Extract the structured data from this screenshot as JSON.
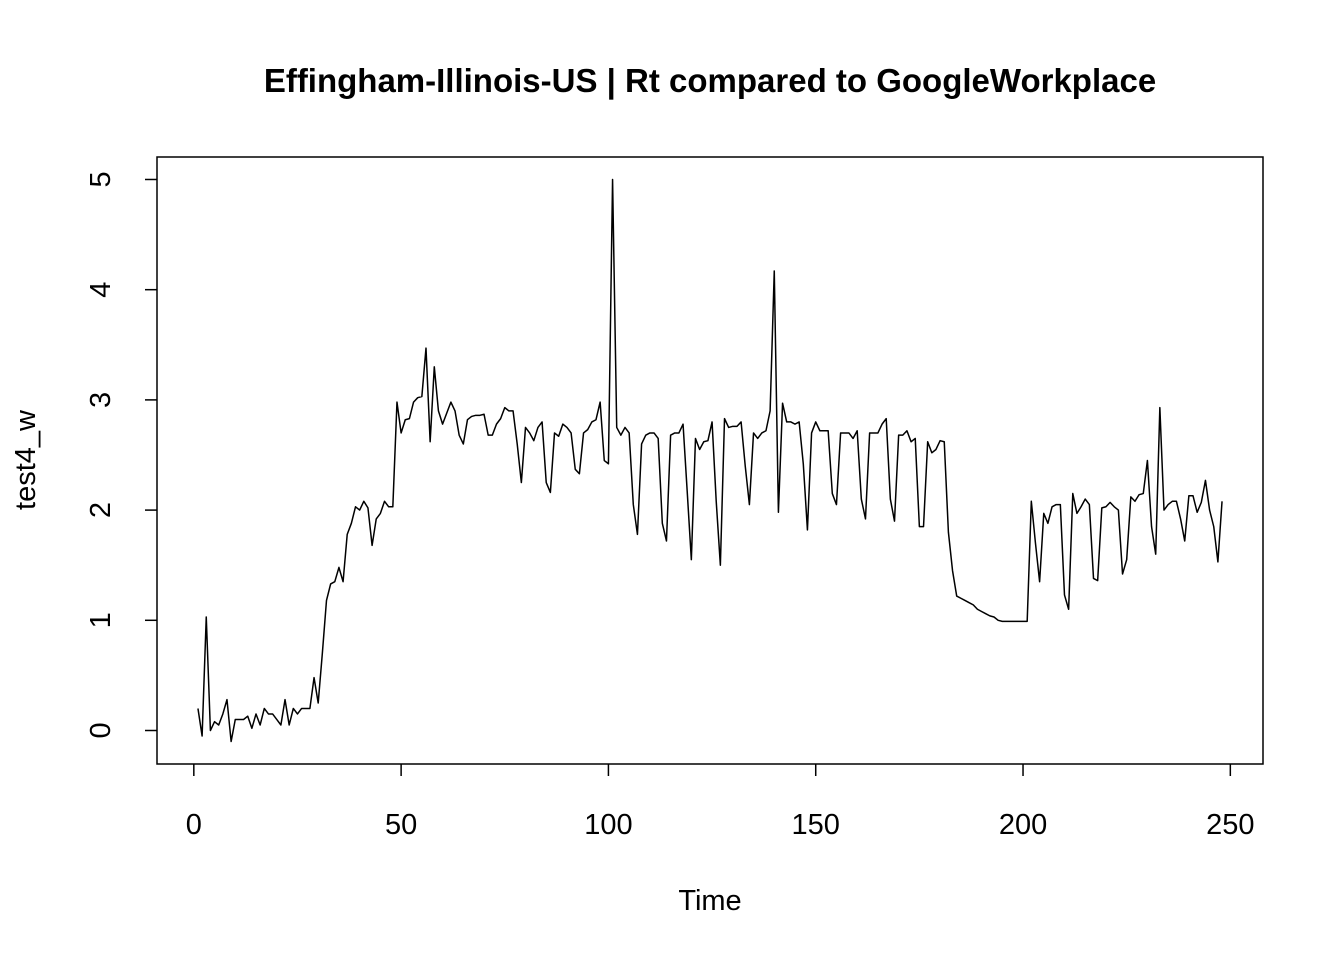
{
  "chart_data": {
    "type": "line",
    "title": "Effingham-Illinois-US | Rt compared to GoogleWorkplace",
    "x_label": "Time",
    "y_label": "test4_w",
    "x": [
      1,
      2,
      3,
      4,
      5,
      6,
      7,
      8,
      9,
      10,
      11,
      12,
      13,
      14,
      15,
      16,
      17,
      18,
      19,
      20,
      21,
      22,
      23,
      24,
      25,
      26,
      27,
      28,
      29,
      30,
      31,
      32,
      33,
      34,
      35,
      36,
      37,
      38,
      39,
      40,
      41,
      42,
      43,
      44,
      45,
      46,
      47,
      48,
      49,
      50,
      51,
      52,
      53,
      54,
      55,
      56,
      57,
      58,
      59,
      60,
      61,
      62,
      63,
      64,
      65,
      66,
      67,
      68,
      69,
      70,
      71,
      72,
      73,
      74,
      75,
      76,
      77,
      78,
      79,
      80,
      81,
      82,
      83,
      84,
      85,
      86,
      87,
      88,
      89,
      90,
      91,
      92,
      93,
      94,
      95,
      96,
      97,
      98,
      99,
      100,
      101,
      102,
      103,
      104,
      105,
      106,
      107,
      108,
      109,
      110,
      111,
      112,
      113,
      114,
      115,
      116,
      117,
      118,
      119,
      120,
      121,
      122,
      123,
      124,
      125,
      126,
      127,
      128,
      129,
      130,
      131,
      132,
      133,
      134,
      135,
      136,
      137,
      138,
      139,
      140,
      141,
      142,
      143,
      144,
      145,
      146,
      147,
      148,
      149,
      150,
      151,
      152,
      153,
      154,
      155,
      156,
      157,
      158,
      159,
      160,
      161,
      162,
      163,
      164,
      165,
      166,
      167,
      168,
      169,
      170,
      171,
      172,
      173,
      174,
      175,
      176,
      177,
      178,
      179,
      180,
      181,
      182,
      183,
      184,
      185,
      186,
      187,
      188,
      189,
      190,
      191,
      192,
      193,
      194,
      195,
      196,
      197,
      198,
      199,
      200,
      201,
      202,
      203,
      204,
      205,
      206,
      207,
      208,
      209,
      210,
      211,
      212,
      213,
      214,
      215,
      216,
      217,
      218,
      219,
      220,
      221,
      222,
      223,
      224,
      225,
      226,
      227,
      228,
      229,
      230,
      231,
      232,
      233,
      234,
      235,
      236,
      237,
      238,
      239,
      240,
      241,
      242,
      243,
      244,
      245,
      246,
      247,
      248
    ],
    "series": [
      {
        "name": "test4_w",
        "color": "#000000",
        "values": [
          0.2,
          -0.05,
          1.03,
          0,
          0.08,
          0.05,
          0.15,
          0.28,
          -0.1,
          0.1,
          0.1,
          0.1,
          0.13,
          0.02,
          0.15,
          0.05,
          0.2,
          0.15,
          0.15,
          0.1,
          0.05,
          0.28,
          0.05,
          0.2,
          0.15,
          0.2,
          0.2,
          0.2,
          0.48,
          0.25,
          0.7,
          1.18,
          1.33,
          1.35,
          1.48,
          1.35,
          1.78,
          1.88,
          2.03,
          2.0,
          2.08,
          2.02,
          1.68,
          1.92,
          1.97,
          2.08,
          2.03,
          2.03,
          2.98,
          2.7,
          2.82,
          2.83,
          2.98,
          3.02,
          3.03,
          3.47,
          2.62,
          3.3,
          2.9,
          2.78,
          2.88,
          2.98,
          2.9,
          2.68,
          2.6,
          2.82,
          2.85,
          2.86,
          2.86,
          2.87,
          2.68,
          2.68,
          2.78,
          2.83,
          2.93,
          2.9,
          2.9,
          2.6,
          2.25,
          2.75,
          2.7,
          2.63,
          2.75,
          2.8,
          2.25,
          2.16,
          2.7,
          2.67,
          2.78,
          2.75,
          2.7,
          2.37,
          2.33,
          2.7,
          2.73,
          2.8,
          2.82,
          2.98,
          2.45,
          2.42,
          5.0,
          2.75,
          2.68,
          2.75,
          2.7,
          2.05,
          1.78,
          2.6,
          2.68,
          2.7,
          2.7,
          2.65,
          1.88,
          1.72,
          2.68,
          2.7,
          2.7,
          2.78,
          2.17,
          1.55,
          2.65,
          2.55,
          2.62,
          2.63,
          2.8,
          2.08,
          1.5,
          2.83,
          2.75,
          2.76,
          2.76,
          2.8,
          2.4,
          2.05,
          2.7,
          2.65,
          2.7,
          2.72,
          2.9,
          4.17,
          1.98,
          2.97,
          2.8,
          2.8,
          2.78,
          2.8,
          2.42,
          1.82,
          2.7,
          2.8,
          2.72,
          2.72,
          2.72,
          2.15,
          2.05,
          2.7,
          2.7,
          2.7,
          2.65,
          2.72,
          2.1,
          1.92,
          2.7,
          2.7,
          2.7,
          2.78,
          2.83,
          2.1,
          1.9,
          2.68,
          2.68,
          2.72,
          2.62,
          2.65,
          1.85,
          1.85,
          2.62,
          2.52,
          2.55,
          2.63,
          2.62,
          1.8,
          1.45,
          1.22,
          1.2,
          1.18,
          1.16,
          1.14,
          1.1,
          1.08,
          1.06,
          1.04,
          1.03,
          1.0,
          0.99,
          0.99,
          0.99,
          0.99,
          0.99,
          0.99,
          0.99,
          2.08,
          1.7,
          1.35,
          1.97,
          1.88,
          2.03,
          2.05,
          2.05,
          1.23,
          1.1,
          2.15,
          1.97,
          2.03,
          2.1,
          2.05,
          1.38,
          1.36,
          2.02,
          2.03,
          2.07,
          2.03,
          2.0,
          1.42,
          1.55,
          2.12,
          2.08,
          2.14,
          2.15,
          2.45,
          1.85,
          1.6,
          2.93,
          2.0,
          2.05,
          2.08,
          2.08,
          1.92,
          1.72,
          2.13,
          2.13,
          1.98,
          2.07,
          2.27,
          2.0,
          1.85,
          1.53,
          2.08
        ]
      }
    ],
    "xlim": [
      -8.88,
      257.88
    ],
    "ylim": [
      -0.304,
      5.204
    ],
    "xticks": [
      0,
      50,
      100,
      150,
      200,
      250
    ],
    "yticks": [
      0,
      1,
      2,
      3,
      4,
      5
    ]
  }
}
